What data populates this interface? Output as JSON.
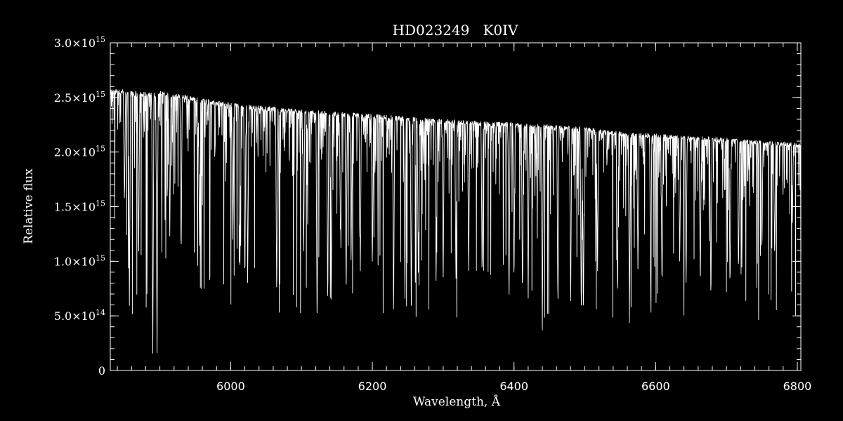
{
  "chart_data": {
    "type": "line",
    "title": "HD023249   K0IV",
    "xlabel": "Wavelength, Å",
    "ylabel": "Relative flux",
    "xlim": [
      5830,
      6805
    ],
    "ylim": [
      0,
      3000000000000000.0
    ],
    "x_ticks": [
      {
        "value": 6000,
        "label": "6000"
      },
      {
        "value": 6200,
        "label": "6200"
      },
      {
        "value": 6400,
        "label": "6400"
      },
      {
        "value": 6600,
        "label": "6600"
      },
      {
        "value": 6800,
        "label": "6800"
      }
    ],
    "y_ticks": [
      {
        "value": 0,
        "mant": "0",
        "exp": ""
      },
      {
        "value": 500000000000000.0,
        "mant": "5.0×10",
        "exp": "14"
      },
      {
        "value": 1000000000000000.0,
        "mant": "1.0×10",
        "exp": "15"
      },
      {
        "value": 1500000000000000.0,
        "mant": "1.5×10",
        "exp": "15"
      },
      {
        "value": 2000000000000000.0,
        "mant": "2.0×10",
        "exp": "15"
      },
      {
        "value": 2500000000000000.0,
        "mant": "2.5×10",
        "exp": "15"
      },
      {
        "value": 3000000000000000.0,
        "mant": "3.0×10",
        "exp": "15"
      }
    ],
    "grid": false,
    "line_color": "#ffffff",
    "background": "#000000",
    "series": [
      {
        "continuum": [
          [
            5830,
            2580000000000000.0
          ],
          [
            5895,
            2540000000000000.0
          ],
          [
            5900,
            2560000000000000.0
          ],
          [
            6000,
            2450000000000000.0
          ],
          [
            6100,
            2390000000000000.0
          ],
          [
            6200,
            2350000000000000.0
          ],
          [
            6300,
            2300000000000000.0
          ],
          [
            6400,
            2270000000000000.0
          ],
          [
            6500,
            2230000000000000.0
          ],
          [
            6560,
            2180000000000000.0
          ],
          [
            6600,
            2170000000000000.0
          ],
          [
            6700,
            2130000000000000.0
          ],
          [
            6805,
            2080000000000000.0
          ]
        ],
        "absorption_lines": [
          [
            5850,
            1500000000000000.0
          ],
          [
            5857,
            580000000000000.0
          ],
          [
            5870,
            950000000000000.0
          ],
          [
            5890,
            120000000000000.0
          ],
          [
            5896,
            120000000000000.0
          ],
          [
            5914,
            1200000000000000.0
          ],
          [
            5930,
            1000000000000000.0
          ],
          [
            5956,
            1100000000000000.0
          ],
          [
            6003,
            1150000000000000.0
          ],
          [
            6013,
            900000000000000.0
          ],
          [
            6020,
            750000000000000.0
          ],
          [
            6024,
            750000000000000.0
          ],
          [
            6065,
            580000000000000.0
          ],
          [
            6103,
            1000000000000000.0
          ],
          [
            6122,
            350000000000000.0
          ],
          [
            6137,
            530000000000000.0
          ],
          [
            6142,
            750000000000000.0
          ],
          [
            6155,
            1200000000000000.0
          ],
          [
            6163,
            650000000000000.0
          ],
          [
            6170,
            900000000000000.0
          ],
          [
            6183,
            900000000000000.0
          ],
          [
            6200,
            900000000000000.0
          ],
          [
            6230,
            450000000000000.0
          ],
          [
            6246,
            620000000000000.0
          ],
          [
            6255,
            550000000000000.0
          ],
          [
            6265,
            730000000000000.0
          ],
          [
            6290,
            750000000000000.0
          ],
          [
            6300,
            800000000000000.0
          ],
          [
            6318,
            780000000000000.0
          ],
          [
            6336,
            850000000000000.0
          ],
          [
            6355,
            850000000000000.0
          ],
          [
            6393,
            600000000000000.0
          ],
          [
            6400,
            750000000000000.0
          ],
          [
            6412,
            650000000000000.0
          ],
          [
            6420,
            550000000000000.0
          ],
          [
            6440,
            350000000000000.0
          ],
          [
            6462,
            530000000000000.0
          ],
          [
            6480,
            500000000000000.0
          ],
          [
            6495,
            450000000000000.0
          ],
          [
            6498,
            450000000000000.0
          ],
          [
            6518,
            900000000000000.0
          ],
          [
            6546,
            600000000000000.0
          ],
          [
            6563,
            400000000000000.0
          ],
          [
            6575,
            900000000000000.0
          ],
          [
            6593,
            650000000000000.0
          ],
          [
            6609,
            700000000000000.0
          ],
          [
            6634,
            950000000000000.0
          ],
          [
            6643,
            750000000000000.0
          ],
          [
            6663,
            700000000000000.0
          ],
          [
            6678,
            600000000000000.0
          ],
          [
            6705,
            700000000000000.0
          ],
          [
            6717,
            850000000000000.0
          ],
          [
            6750,
            1050000000000000.0
          ],
          [
            6768,
            1000000000000000.0
          ],
          [
            6793,
            1350000000000000.0
          ]
        ]
      }
    ]
  }
}
